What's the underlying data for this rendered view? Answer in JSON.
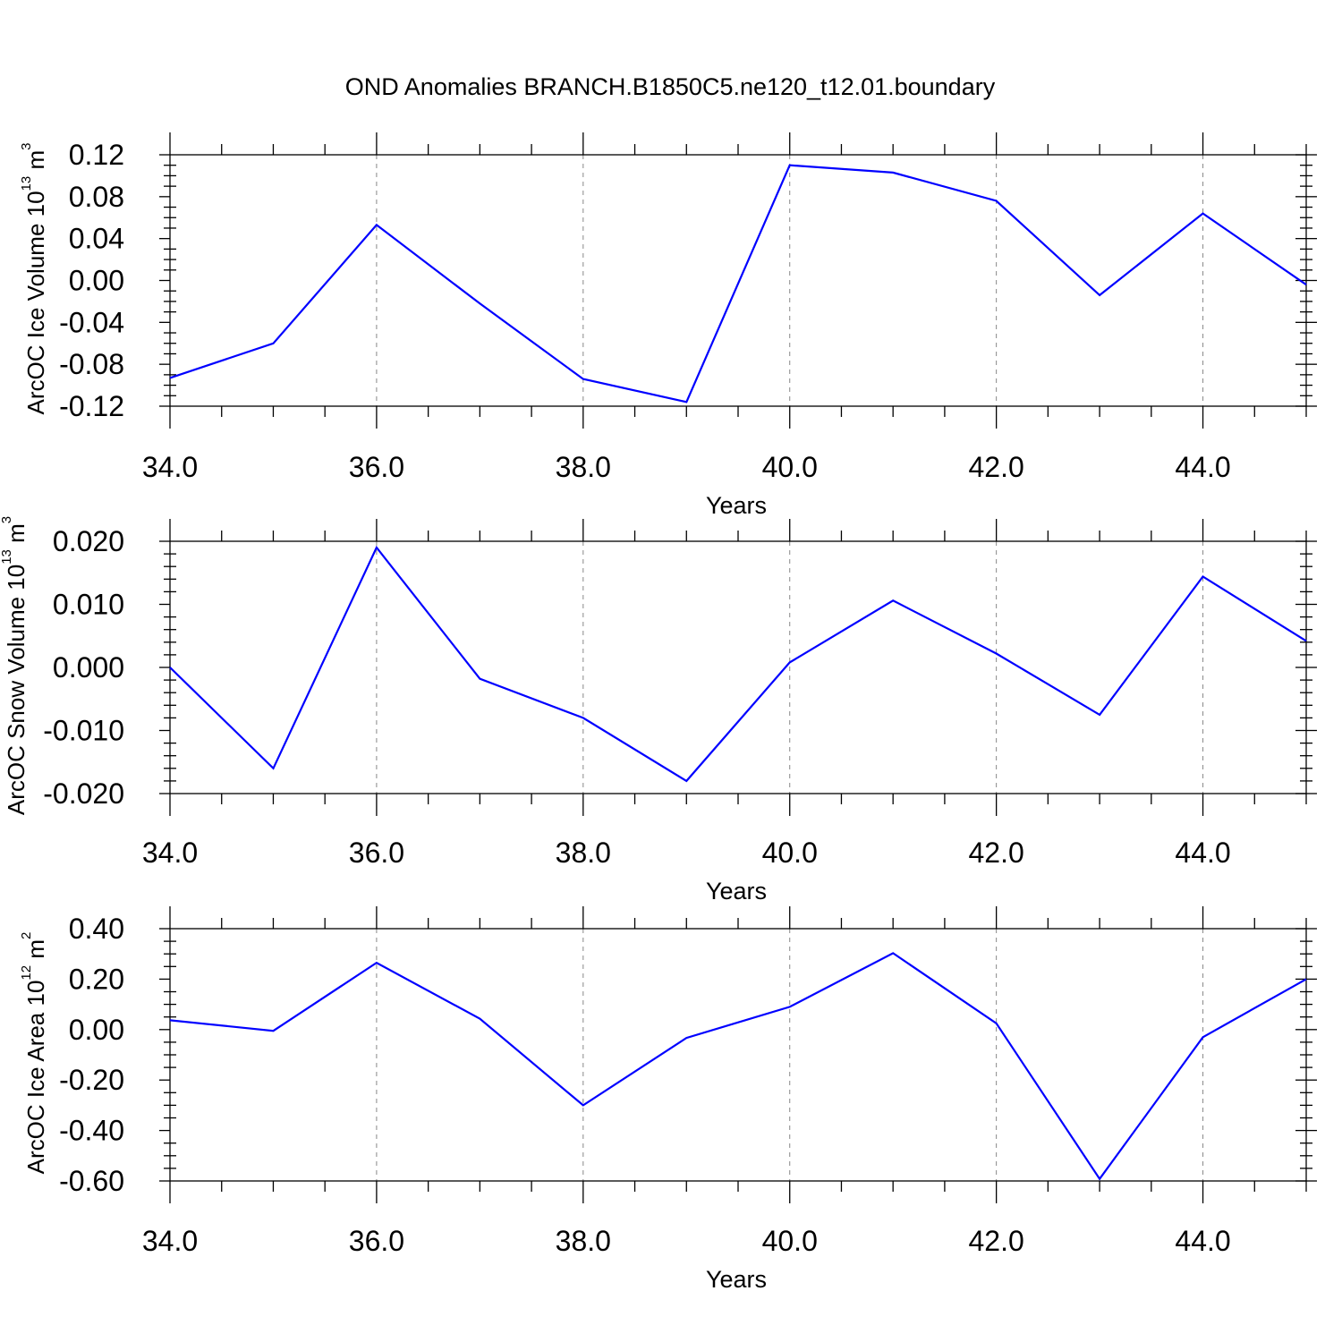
{
  "title": "OND Anomalies BRANCH.B1850C5.ne120_t12.01.boundary",
  "line_color": "#0000ff",
  "chart_data": [
    {
      "type": "line",
      "xlabel": "Years",
      "ylabel": {
        "main": "ArcOC Ice Volume 10",
        "exp": "13",
        "unit": " m",
        "unit_exp": "3"
      },
      "xlim": [
        34,
        45
      ],
      "ylim": [
        -0.12,
        0.12
      ],
      "x_ticks": [
        34,
        36,
        38,
        40,
        42,
        44
      ],
      "x_tick_labels": [
        "34.0",
        "36.0",
        "38.0",
        "40.0",
        "42.0",
        "44.0"
      ],
      "y_ticks": [
        -0.12,
        -0.08,
        -0.04,
        0.0,
        0.04,
        0.08,
        0.12
      ],
      "y_tick_labels": [
        "-0.12",
        "-0.08",
        "-0.04",
        "0.00",
        "0.04",
        "0.08",
        "0.12"
      ],
      "y_minor_step": 0.01,
      "grid": "vertical dashed at major x ticks",
      "series": [
        {
          "x": [
            34,
            35,
            36,
            37,
            38,
            39,
            40,
            41,
            42,
            43,
            44,
            45
          ],
          "y": [
            -0.093,
            -0.06,
            0.053,
            -0.022,
            -0.094,
            -0.116,
            0.11,
            0.103,
            0.076,
            -0.014,
            0.064,
            -0.004
          ]
        }
      ]
    },
    {
      "type": "line",
      "xlabel": "Years",
      "ylabel": {
        "main": "ArcOC Snow Volume 10",
        "exp": "13",
        "unit": " m",
        "unit_exp": "3"
      },
      "xlim": [
        34,
        45
      ],
      "ylim": [
        -0.02,
        0.02
      ],
      "x_ticks": [
        34,
        36,
        38,
        40,
        42,
        44
      ],
      "x_tick_labels": [
        "34.0",
        "36.0",
        "38.0",
        "40.0",
        "42.0",
        "44.0"
      ],
      "y_ticks": [
        -0.02,
        -0.01,
        0.0,
        0.01,
        0.02
      ],
      "y_tick_labels": [
        "-0.020",
        "-0.010",
        "0.000",
        "0.010",
        "0.020"
      ],
      "y_minor_step": 0.002,
      "grid": "vertical dashed at major x ticks",
      "series": [
        {
          "x": [
            34,
            35,
            36,
            37,
            38,
            39,
            40,
            41,
            42,
            43,
            44,
            45
          ],
          "y": [
            0.0,
            -0.016,
            0.019,
            -0.0018,
            -0.008,
            -0.018,
            0.0008,
            0.0106,
            0.0022,
            -0.0075,
            0.0144,
            0.0042
          ]
        }
      ]
    },
    {
      "type": "line",
      "xlabel": "Years",
      "ylabel": {
        "main": "ArcOC Ice Area 10",
        "exp": "12",
        "unit": " m",
        "unit_exp": "2"
      },
      "xlim": [
        34,
        45
      ],
      "ylim": [
        -0.6,
        0.4
      ],
      "x_ticks": [
        34,
        36,
        38,
        40,
        42,
        44
      ],
      "x_tick_labels": [
        "34.0",
        "36.0",
        "38.0",
        "40.0",
        "42.0",
        "44.0"
      ],
      "y_ticks": [
        -0.6,
        -0.4,
        -0.2,
        0.0,
        0.2,
        0.4
      ],
      "y_tick_labels": [
        "-0.60",
        "-0.40",
        "-0.20",
        "0.00",
        "0.20",
        "0.40"
      ],
      "y_minor_step": 0.05,
      "grid": "vertical dashed at major x ticks",
      "series": [
        {
          "x": [
            34,
            35,
            36,
            37,
            38,
            39,
            40,
            41,
            42,
            43,
            44,
            45
          ],
          "y": [
            0.037,
            -0.005,
            0.265,
            0.043,
            -0.3,
            -0.033,
            0.09,
            0.303,
            0.025,
            -0.592,
            -0.03,
            0.2
          ]
        }
      ]
    }
  ]
}
